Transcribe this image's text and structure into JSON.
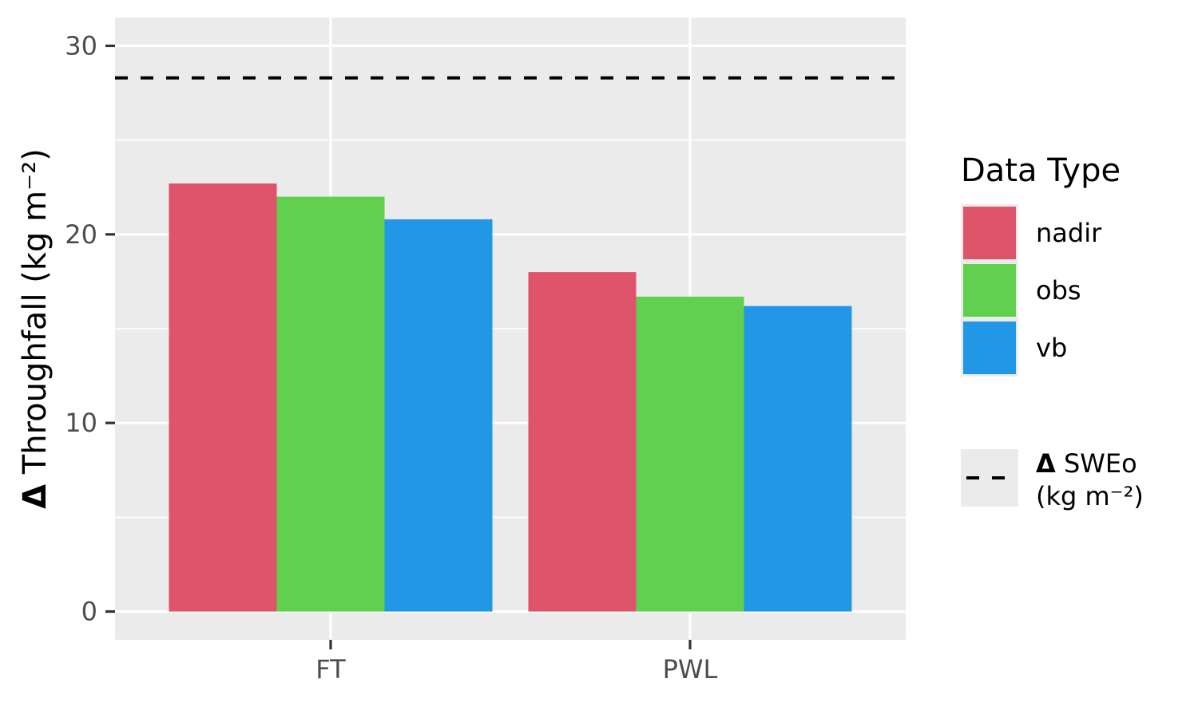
{
  "chart_data": {
    "type": "bar",
    "categories": [
      "FT",
      "PWL"
    ],
    "series": [
      {
        "name": "nadir",
        "color": "#DF536B",
        "values": [
          22.7,
          18.0
        ]
      },
      {
        "name": "obs",
        "color": "#61D04F",
        "values": [
          22.0,
          16.7
        ]
      },
      {
        "name": "vb",
        "color": "#2297E6",
        "values": [
          20.8,
          16.2
        ]
      }
    ],
    "reference_line": {
      "value": 28.3,
      "style": "dashed",
      "color": "#000000"
    },
    "ylabel": {
      "symbol": "Δ",
      "text": " Throughfall (kg m⁻²)"
    },
    "xlabel": "",
    "yticks": [
      "0",
      "10",
      "20",
      "30"
    ],
    "ytick_values": [
      0,
      10,
      20,
      30
    ],
    "ylim": [
      -1.5,
      31.5
    ],
    "grid": true,
    "legend": {
      "position": "right",
      "title": "Data Type",
      "items": [
        "nadir",
        "obs",
        "vb"
      ],
      "line_item": {
        "symbol": "Δ",
        "line1": " SWEo",
        "line2": "(kg m⁻²)"
      }
    }
  }
}
